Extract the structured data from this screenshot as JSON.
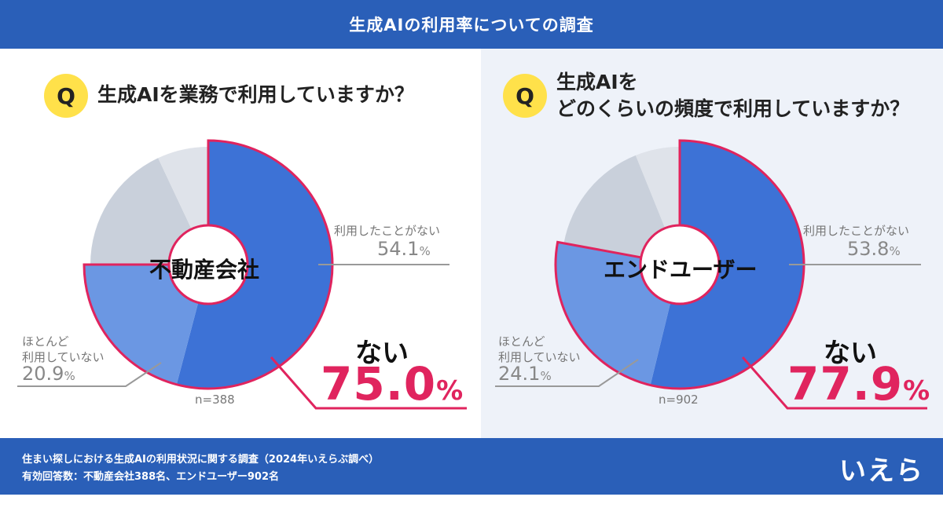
{
  "header": {
    "title": "生成AIの利用率についての調査"
  },
  "left": {
    "q_mark": "Q",
    "question": "生成AIを業務で利用していますか？",
    "center": "不動産会社",
    "never_label": "利用したことがない",
    "never_pct": "54.1",
    "rarely_label1": "ほとんど",
    "rarely_label2": "利用していない",
    "rarely_pct": "20.9",
    "n": "n=388",
    "nai": "ない",
    "total_pct": "75.0",
    "pct_sign": "%"
  },
  "right": {
    "q_mark": "Q",
    "question1": "生成AIを",
    "question2": "どのくらいの頻度で利用していますか？",
    "center": "エンドユーザー",
    "never_label": "利用したことがない",
    "never_pct": "53.8",
    "rarely_label1": "ほとんど",
    "rarely_label2": "利用していない",
    "rarely_pct": "24.1",
    "n": "n=902",
    "nai": "ない",
    "total_pct": "77.9",
    "pct_sign": "%"
  },
  "footer": {
    "line1": "住まい探しにおける生成AIの利用状況に関する調査（2024年いえらぶ調べ）",
    "line2": "有効回答数：不動産会社388名、エンドユーザー902名",
    "logo": "いえらぶ"
  },
  "colors": {
    "dark_blue": "#3d72d6",
    "light_blue": "#6b97e3",
    "gray": "#c9d0db",
    "light_gray": "#dfe3ea",
    "highlight": "#e0245e"
  },
  "chart_data": [
    {
      "type": "pie",
      "title": "生成AIを業務で利用していますか？",
      "center_label": "不動産会社",
      "n": 388,
      "slices": [
        {
          "label": "利用したことがない",
          "value": 54.1
        },
        {
          "label": "ほとんど利用していない",
          "value": 20.9
        },
        {
          "label": "",
          "value": 18.0
        },
        {
          "label": "",
          "value": 7.0
        }
      ],
      "highlight_total": {
        "label": "ない",
        "value": 75.0
      }
    },
    {
      "type": "pie",
      "title": "生成AIをどのくらいの頻度で利用していますか？",
      "center_label": "エンドユーザー",
      "n": 902,
      "slices": [
        {
          "label": "利用したことがない",
          "value": 53.8
        },
        {
          "label": "ほとんど利用していない",
          "value": 24.1
        },
        {
          "label": "",
          "value": 16.0
        },
        {
          "label": "",
          "value": 6.1
        }
      ],
      "highlight_total": {
        "label": "ない",
        "value": 77.9
      }
    }
  ]
}
